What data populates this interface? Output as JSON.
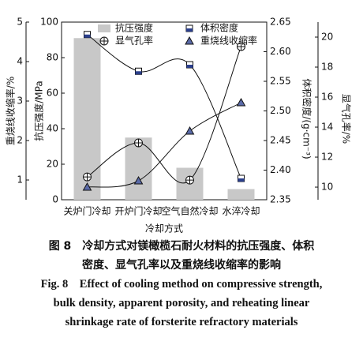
{
  "chart_data": {
    "type": "combo",
    "x_label": "冷却方式",
    "y_label": "抗压强度/MPa",
    "y2_label": "体积密度/(g·cm⁻³)",
    "y3_label": "显气孔率/%",
    "y4_label": "重烧线收缩率/%",
    "categories": [
      "关炉门冷却",
      "开炉门冷却",
      "空气自然冷却",
      "水淬冷却"
    ],
    "ylim": [
      0,
      100
    ],
    "yticks": [
      0,
      20,
      40,
      60,
      80,
      100
    ],
    "y2lim": [
      2.35,
      2.65
    ],
    "y2ticks": [
      2.35,
      {
        "value": 2.4,
        "label": "2.40"
      },
      2.45,
      {
        "value": 2.5,
        "label": "2.50"
      },
      2.55,
      {
        "value": 2.6,
        "label": "2.60"
      },
      2.65
    ],
    "y3lim": [
      9.16,
      21
    ],
    "y3ticks": [
      10,
      12,
      14,
      16,
      18,
      20
    ],
    "y4lim": [
      0.5,
      5
    ],
    "y4ticks": [
      1,
      2,
      3,
      4,
      5
    ],
    "series": [
      {
        "name": "抗压强度",
        "type": "bar",
        "axis": "y",
        "color": "#c8c8c8",
        "values": [
          91,
          35,
          18,
          6
        ]
      },
      {
        "name": "体积密度",
        "type": "square",
        "axis": "y2",
        "color": "#2b3f8c",
        "values": [
          2.629,
          2.567,
          2.578,
          2.386
        ]
      },
      {
        "name": "显气孔率",
        "type": "circle",
        "axis": "y3",
        "color": "#ffffff",
        "values": [
          10.68,
          12.95,
          10.47,
          19.37
        ]
      },
      {
        "name": "重烧线收缩率",
        "type": "triangle",
        "axis": "y4",
        "color": "#5a6aa8",
        "values": [
          0.82,
          0.98,
          2.24,
          2.96
        ]
      }
    ]
  },
  "caption": {
    "zh": [
      "图 8　冷却方式对镁橄榄石耐火材料的抗压强度、体积",
      "密度、显气孔率以及重烧线收缩率的影响"
    ],
    "en": [
      "Fig. 8　Effect of cooling method on compressive strength,",
      "bulk density, apparent porosity, and reheating linear",
      "shrinkage rate of forsterite refractory materials"
    ]
  }
}
